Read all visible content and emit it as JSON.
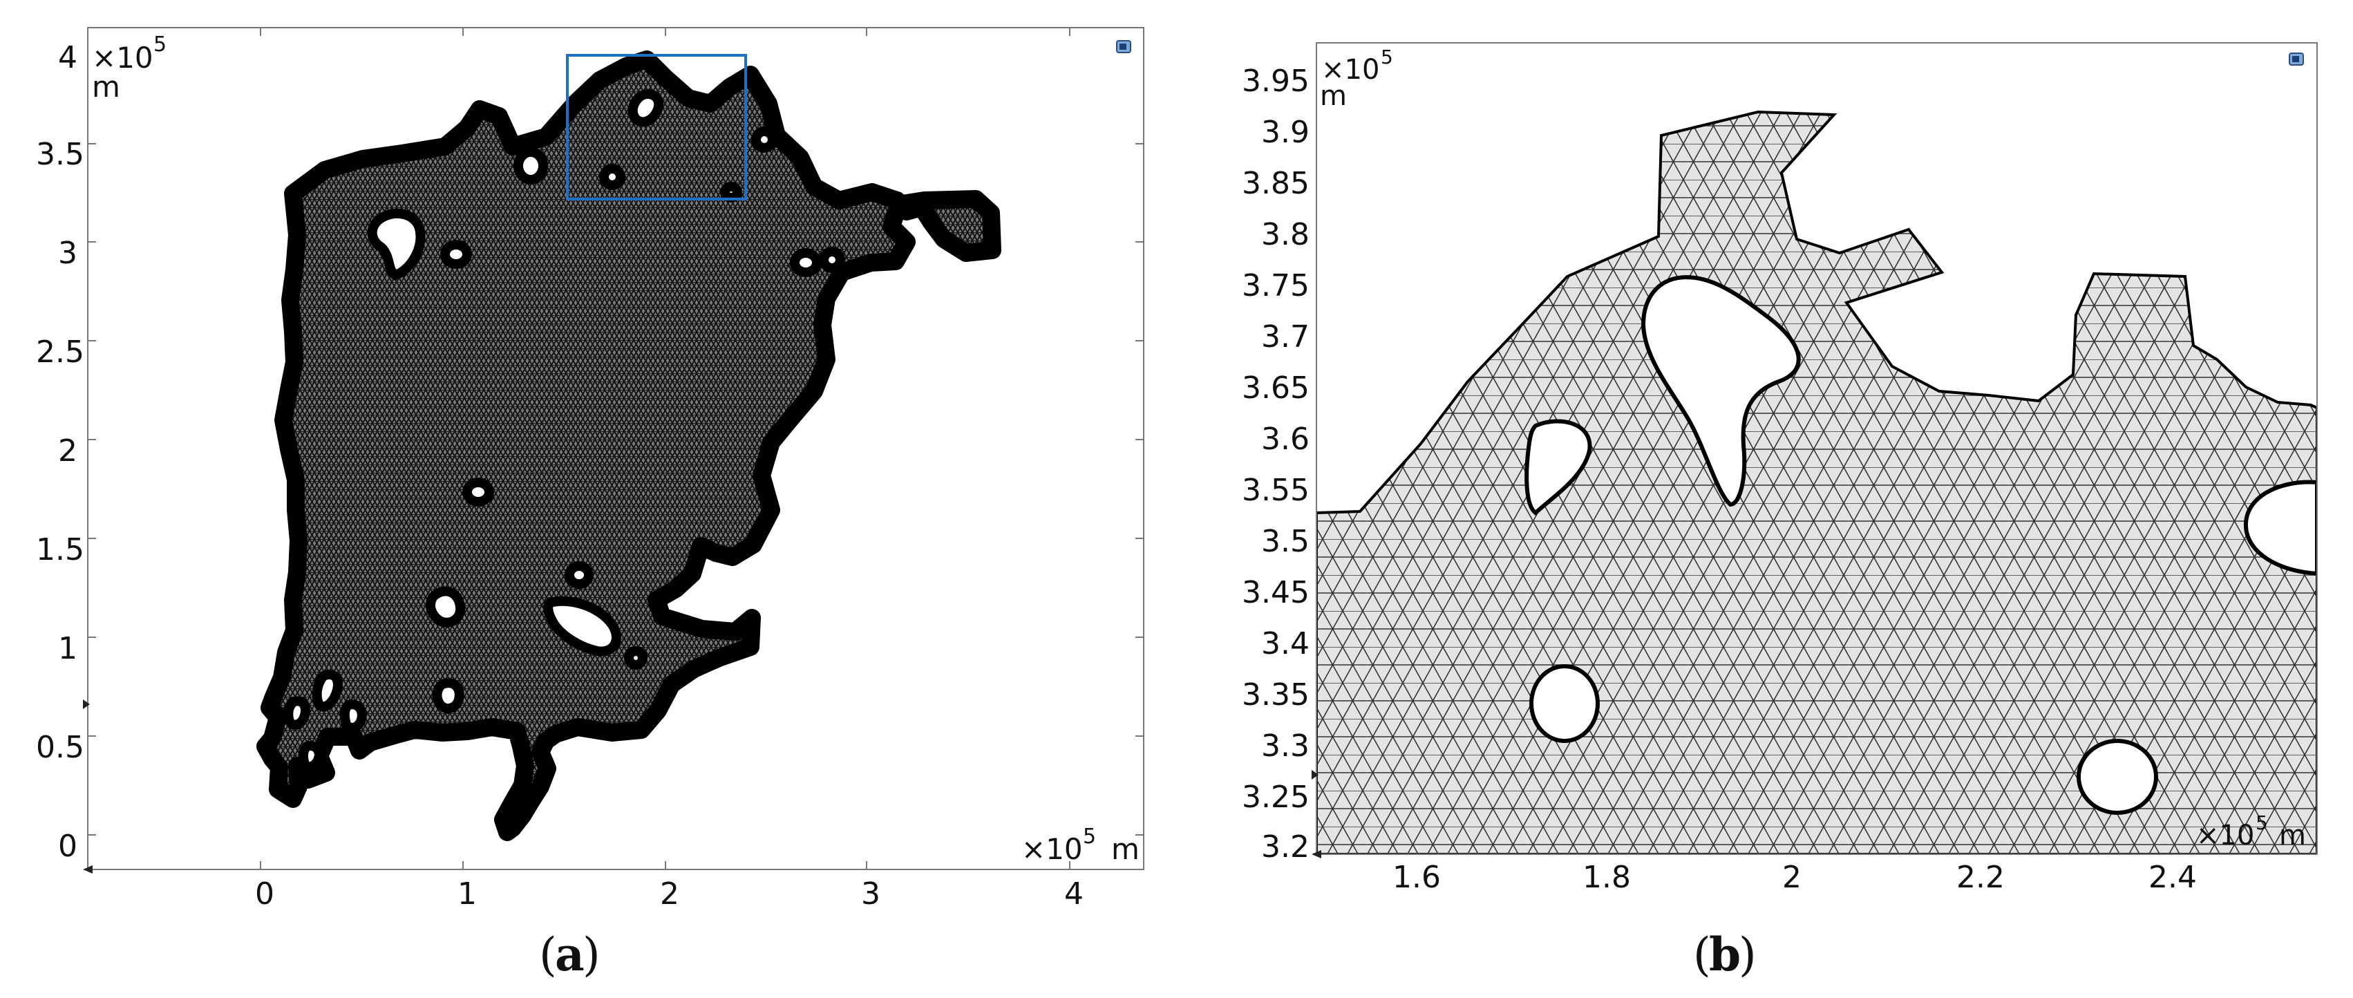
{
  "panels": [
    {
      "id": "a",
      "caption_open": "(",
      "caption_letter": "a",
      "caption_close": ")",
      "y_exponent_label": "×10",
      "y_exponent_power": "5",
      "y_unit": "m",
      "x_exponent_label": "×10",
      "x_exponent_power": "5",
      "x_unit": "m",
      "x_ticks": [
        "0",
        "1",
        "2",
        "3",
        "4"
      ],
      "y_ticks": [
        "4",
        "3.5",
        "3",
        "2.5",
        "2",
        "1.5",
        "1",
        "0.5",
        "0"
      ],
      "zoom_box_color": "#1f6fc5"
    },
    {
      "id": "b",
      "caption_open": "(",
      "caption_letter": "b",
      "caption_close": ")",
      "y_exponent_label": "×10",
      "y_exponent_power": "5",
      "y_unit": "m",
      "x_exponent_label": "×10",
      "x_exponent_power": "5",
      "x_unit": "m",
      "x_ticks": [
        "1.6",
        "1.8",
        "2",
        "2.2",
        "2.4"
      ],
      "y_ticks": [
        "3.95",
        "3.9",
        "3.85",
        "3.8",
        "3.75",
        "3.7",
        "3.65",
        "3.6",
        "3.55",
        "3.5",
        "3.45",
        "3.4",
        "3.35",
        "3.3",
        "3.25",
        "3.2"
      ]
    }
  ]
}
